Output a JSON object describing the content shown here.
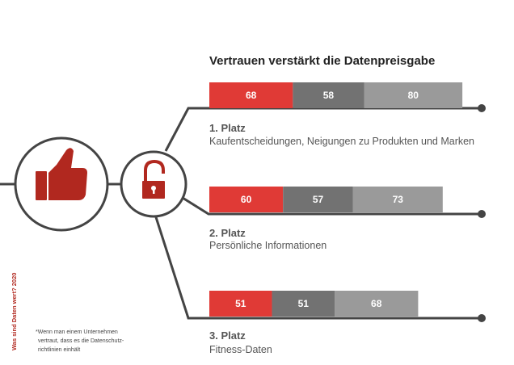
{
  "chart_data": {
    "type": "bar",
    "title": "Vertrauen verstärkt die Datenpreisgabe",
    "categories": [
      {
        "rank": "1. Platz",
        "label": "Kaufentscheidungen, Neigungen zu Produkten und Marken",
        "values": [
          68,
          58,
          80
        ]
      },
      {
        "rank": "2. Platz",
        "label": "Persönliche Informationen",
        "values": [
          60,
          57,
          73
        ]
      },
      {
        "rank": "3. Platz",
        "label": "Fitness-Daten",
        "values": [
          51,
          51,
          68
        ]
      }
    ],
    "series_colors": [
      "#e03a36",
      "#727272",
      "#9a9a9a"
    ],
    "side_note": "Was sind Daten wert? 2020",
    "footnote": [
      "*Wenn man einem Unternehmen",
      "vertraut, dass es die Datenschutz-",
      "richtlinien einhält"
    ]
  },
  "colors": {
    "line": "#444444",
    "icon": "#b1281f",
    "accent": "#e03a36"
  },
  "icons": [
    "thumbs-up-icon",
    "unlocked-padlock-icon"
  ]
}
